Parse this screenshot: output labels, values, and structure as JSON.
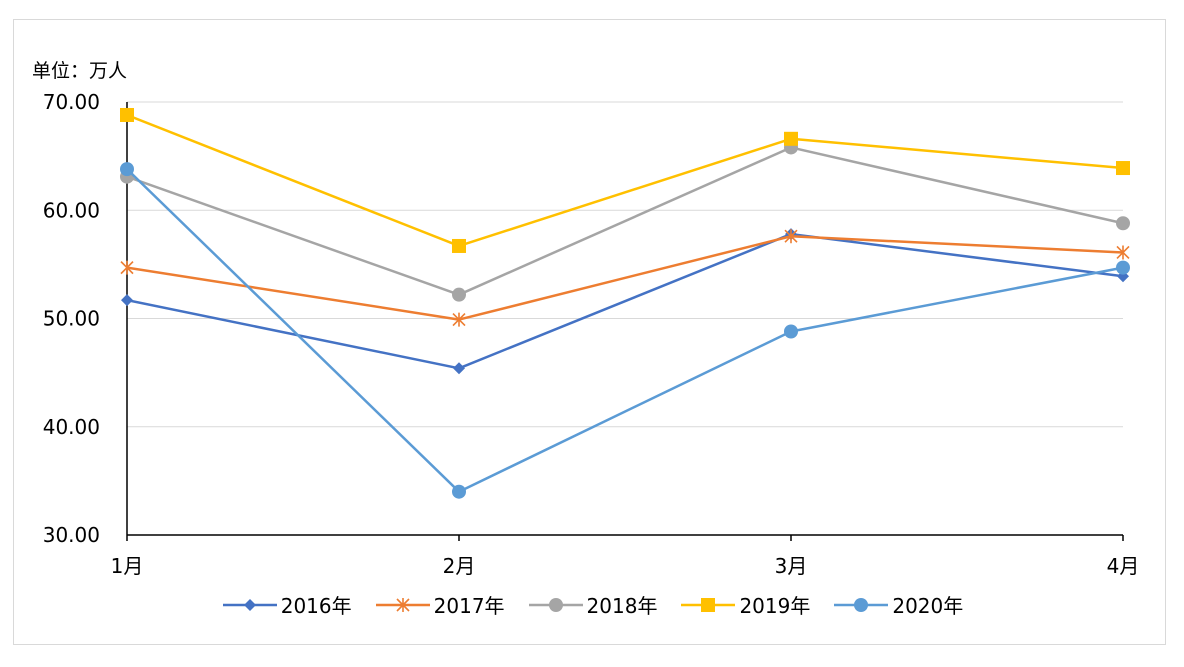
{
  "chart_data": {
    "type": "line",
    "title": "",
    "unit_label": "单位：万人",
    "xlabel": "",
    "ylabel": "",
    "categories": [
      "1月",
      "2月",
      "3月",
      "4月"
    ],
    "ylim": [
      30,
      70
    ],
    "yticks": [
      "30.00",
      "40.00",
      "50.00",
      "60.00",
      "70.00"
    ],
    "ytick_values": [
      30,
      40,
      50,
      60,
      70
    ],
    "grid": true,
    "legend_position": "bottom",
    "series": [
      {
        "name": "2016年",
        "values": [
          51.7,
          45.4,
          57.8,
          53.9
        ],
        "color": "#4472c4",
        "marker": "diamond"
      },
      {
        "name": "2017年",
        "values": [
          54.7,
          49.9,
          57.6,
          56.1
        ],
        "color": "#ed7d31",
        "marker": "star"
      },
      {
        "name": "2018年",
        "values": [
          63.1,
          52.2,
          65.8,
          58.8
        ],
        "color": "#a5a5a5",
        "marker": "circle"
      },
      {
        "name": "2019年",
        "values": [
          68.8,
          56.7,
          66.6,
          63.9
        ],
        "color": "#ffc000",
        "marker": "square"
      },
      {
        "name": "2020年",
        "values": [
          63.8,
          34.0,
          48.8,
          54.7
        ],
        "color": "#5b9bd5",
        "marker": "circle"
      }
    ]
  }
}
